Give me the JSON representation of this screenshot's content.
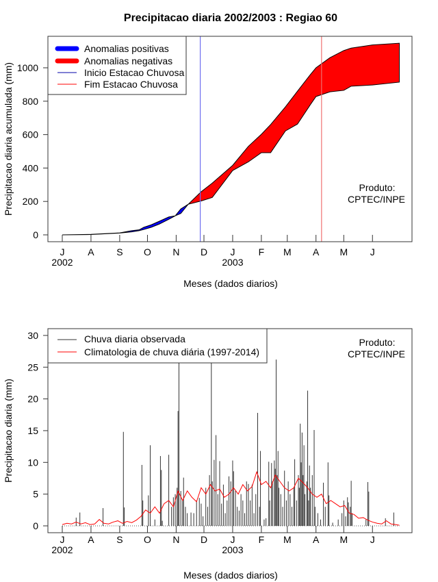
{
  "chart_data": [
    {
      "type": "area",
      "title": "Precipitacao diaria 2002/2003 : Regiao 60",
      "xlabel": "Meses (dados diarios)",
      "ylabel": "Precipitacao diaria acumulada (mm)",
      "ylim": [
        0,
        1150
      ],
      "yticks": [
        "0",
        "200",
        "400",
        "600",
        "800",
        "1000"
      ],
      "ytick_values": [
        0,
        200,
        400,
        600,
        800,
        1000
      ],
      "month_labels": [
        "J",
        "A",
        "S",
        "O",
        "N",
        "D",
        "J",
        "F",
        "M",
        "A",
        "M",
        "J"
      ],
      "month_start_days": [
        0,
        31,
        62,
        92,
        123,
        153,
        184,
        215,
        243,
        274,
        304,
        335
      ],
      "year_labels": [
        {
          "text": "2002",
          "day": 0
        },
        {
          "text": "2003",
          "day": 184
        }
      ],
      "days": [
        0,
        31,
        62,
        75,
        83,
        88,
        96,
        105,
        115,
        122,
        128,
        136,
        150,
        162,
        184,
        201,
        215,
        225,
        241,
        254,
        268,
        274,
        289,
        304,
        312,
        335,
        364
      ],
      "observed_accumulated": [
        0,
        2,
        12,
        25,
        30,
        45,
        60,
        82,
        107,
        114,
        155,
        183,
        203,
        224,
        385,
        437,
        492,
        492,
        622,
        663,
        780,
        828,
        856,
        865,
        890,
        897,
        914
      ],
      "climatology_accumulated": [
        0,
        3,
        11,
        18,
        25,
        32,
        45,
        65,
        93,
        114,
        128,
        183,
        258,
        310,
        416,
        530,
        602,
        660,
        766,
        860,
        960,
        1000,
        1060,
        1103,
        1118,
        1137,
        1147
      ],
      "rainy_season_start_day": 149,
      "rainy_season_end_day": 280,
      "legend": {
        "position": "top-left",
        "entries": [
          {
            "label": "Anomalias positivas",
            "color": "#0000ff",
            "style": "thick"
          },
          {
            "label": "Anomalias negativas",
            "color": "#ff0000",
            "style": "thick"
          },
          {
            "label": "Inicio Estacao Chuvosa",
            "color": "#0000ff",
            "style": "line"
          },
          {
            "label": "Fim Estacao Chuvosa",
            "color": "#ff0000",
            "style": "line"
          }
        ]
      },
      "annotation": [
        "Produto:",
        "CPTEC/INPE"
      ]
    },
    {
      "type": "bar",
      "xlabel": "Meses (dados diarios)",
      "ylabel": "Precipitacao diaria (mm)",
      "ylim": [
        0,
        30
      ],
      "yticks": [
        "0",
        "5",
        "10",
        "15",
        "20",
        "25",
        "30"
      ],
      "ytick_values": [
        0,
        5,
        10,
        15,
        20,
        25,
        30
      ],
      "month_labels": [
        "J",
        "A",
        "S",
        "O",
        "N",
        "D",
        "J",
        "F",
        "M",
        "A",
        "M",
        "J"
      ],
      "month_start_days": [
        0,
        31,
        62,
        92,
        123,
        153,
        184,
        215,
        243,
        274,
        304,
        335
      ],
      "year_labels": [
        {
          "text": "2002",
          "day": 0
        },
        {
          "text": "2003",
          "day": 184
        }
      ],
      "observed_daily": [
        [
          15,
          1.3
        ],
        [
          19,
          2.1
        ],
        [
          44,
          2.8
        ],
        [
          66,
          14.8
        ],
        [
          67,
          2.9
        ],
        [
          86,
          9.6
        ],
        [
          87,
          4.0
        ],
        [
          93,
          4.8
        ],
        [
          95,
          12.7
        ],
        [
          100,
          1
        ],
        [
          106,
          11.0
        ],
        [
          107,
          8.8
        ],
        [
          108,
          0.8
        ],
        [
          115,
          11.2
        ],
        [
          118,
          3
        ],
        [
          120,
          4.5
        ],
        [
          122,
          5
        ],
        [
          124,
          6
        ],
        [
          125,
          18.1
        ],
        [
          126,
          31
        ],
        [
          128,
          5.5
        ],
        [
          130,
          4
        ],
        [
          131,
          7.6
        ],
        [
          133,
          3
        ],
        [
          135,
          2
        ],
        [
          139,
          2.1
        ],
        [
          142,
          2
        ],
        [
          145,
          4
        ],
        [
          148,
          4.4
        ],
        [
          150,
          3.5
        ],
        [
          152,
          1.5
        ],
        [
          155,
          6
        ],
        [
          157,
          3
        ],
        [
          159,
          8
        ],
        [
          161,
          31
        ],
        [
          162,
          7
        ],
        [
          164,
          10.4
        ],
        [
          166,
          14.3
        ],
        [
          168,
          5
        ],
        [
          170,
          10.2
        ],
        [
          172,
          3.5
        ],
        [
          174,
          6.5
        ],
        [
          176,
          2
        ],
        [
          178,
          4
        ],
        [
          180,
          7.8
        ],
        [
          182,
          7
        ],
        [
          184,
          10.3
        ],
        [
          185,
          8.6
        ],
        [
          187,
          5.5
        ],
        [
          189,
          3
        ],
        [
          191,
          2.4
        ],
        [
          193,
          5
        ],
        [
          195,
          4
        ],
        [
          197,
          2
        ],
        [
          199,
          7
        ],
        [
          201,
          6.6
        ],
        [
          203,
          4
        ],
        [
          205,
          6.5
        ],
        [
          207,
          2
        ],
        [
          209,
          5
        ],
        [
          211,
          17.8
        ],
        [
          213,
          3
        ],
        [
          214,
          11.8
        ],
        [
          218,
          1
        ],
        [
          220,
          1.2
        ],
        [
          223,
          10.1
        ],
        [
          224,
          4
        ],
        [
          226,
          9.9
        ],
        [
          227,
          7
        ],
        [
          229,
          10.3
        ],
        [
          230,
          9
        ],
        [
          231,
          26.2
        ],
        [
          232,
          8
        ],
        [
          233,
          11.8
        ],
        [
          234,
          6
        ],
        [
          236,
          5
        ],
        [
          238,
          3
        ],
        [
          240,
          8.7
        ],
        [
          242,
          4
        ],
        [
          244,
          7
        ],
        [
          246,
          5
        ],
        [
          248,
          3
        ],
        [
          250,
          6
        ],
        [
          251,
          10.5
        ],
        [
          253,
          4
        ],
        [
          255,
          8
        ],
        [
          256,
          6
        ],
        [
          257,
          16.1
        ],
        [
          258,
          10
        ],
        [
          259,
          14.7
        ],
        [
          260,
          8
        ],
        [
          261,
          12.7
        ],
        [
          262,
          5
        ],
        [
          264,
          7
        ],
        [
          265,
          21.3
        ],
        [
          266,
          4
        ],
        [
          267,
          9.5
        ],
        [
          268,
          6
        ],
        [
          270,
          8
        ],
        [
          272,
          15.1
        ],
        [
          273,
          3
        ],
        [
          276,
          2
        ],
        [
          279,
          1
        ],
        [
          282,
          6.8
        ],
        [
          284,
          3
        ],
        [
          287,
          10.0
        ],
        [
          288,
          4.8
        ],
        [
          292,
          0.5
        ],
        [
          298,
          1
        ],
        [
          302,
          2
        ],
        [
          304,
          4.0
        ],
        [
          306,
          1.5
        ],
        [
          308,
          4.5
        ],
        [
          309,
          3.7
        ],
        [
          311,
          3
        ],
        [
          312,
          7.1
        ],
        [
          313,
          2
        ],
        [
          328,
          1
        ],
        [
          330,
          6.9
        ],
        [
          331,
          5.4
        ],
        [
          349,
          1.2
        ],
        [
          358,
          2.1
        ]
      ],
      "climatology_step_days": 5,
      "climatology_daily": [
        0.2,
        0.4,
        0.3,
        0.6,
        0.3,
        0.5,
        0.2,
        0.3,
        1.0,
        0.4,
        0.3,
        0.6,
        0.8,
        0.4,
        0.7,
        0.5,
        0.9,
        1.5,
        2.5,
        2.0,
        3.0,
        2.0,
        3.5,
        4.0,
        3.0,
        5.5,
        4.0,
        5.5,
        4.5,
        3.8,
        6.0,
        5.0,
        6.5,
        5.5,
        5.8,
        4.5,
        5.0,
        6.0,
        5.0,
        6.5,
        5.5,
        6.2,
        8.5,
        6.5,
        7.0,
        6.0,
        8.0,
        7.0,
        6.0,
        5.5,
        6.0,
        7.5,
        6.8,
        6.0,
        5.0,
        4.5,
        5.0,
        3.5,
        4.0,
        3.5,
        3.0,
        3.2,
        2.0,
        1.8,
        1.2,
        1.3,
        0.9,
        0.6,
        0.4,
        0.3,
        0.8,
        0.3,
        0.2,
        0.1
      ],
      "legend": {
        "position": "top-left",
        "entries": [
          {
            "label": "Chuva diaria observada",
            "color": "#333333"
          },
          {
            "label": "Climatologia de chuva diária (1997-2014)",
            "color": "#ff0000"
          }
        ]
      },
      "annotation": [
        "Produto:",
        "CPTEC/INPE"
      ]
    }
  ]
}
